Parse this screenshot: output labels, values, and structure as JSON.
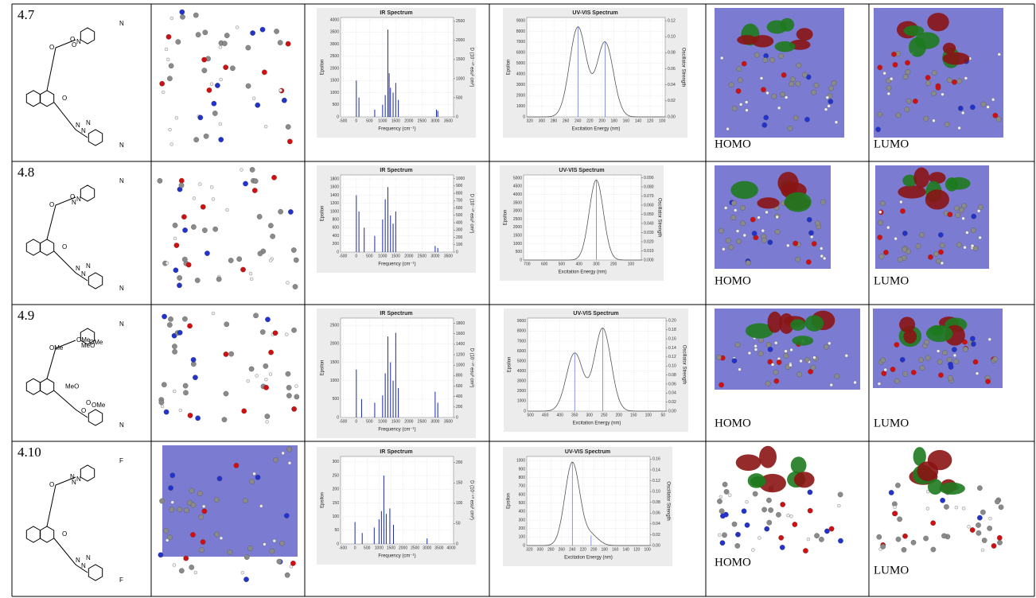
{
  "table": {
    "rows": [
      {
        "id": "4.7",
        "struct_labels": [
          "O",
          "O",
          "O",
          "O",
          "N",
          "N",
          "N",
          "N",
          "N",
          "N"
        ],
        "ir": {
          "title": "IR Spectrum",
          "xlabel": "Frequency (cm⁻¹)",
          "ylabel": "Epsilon",
          "y2label": "D (10⁻⁴⁰ esu² cm²)",
          "xlim": [
            -600,
            3700
          ],
          "ylim": [
            0,
            4100
          ],
          "y2lim": [
            0,
            2600
          ],
          "xticks": [
            -500,
            0,
            500,
            1000,
            1500,
            2000,
            2500,
            3000,
            3500
          ],
          "yticks": [
            0,
            500,
            1000,
            1500,
            2000,
            2500,
            3000,
            3500,
            4000
          ],
          "y2ticks": [
            0,
            500,
            1000,
            1500,
            2000,
            2500
          ],
          "sticks": {
            "x": [
              0,
              100,
              700,
              1000,
              1100,
              1200,
              1250,
              1300,
              1400,
              1500,
              1600,
              3050,
              3100
            ],
            "y": [
              1500,
              800,
              300,
              500,
              900,
              3600,
              1800,
              1200,
              1000,
              1400,
              700,
              300,
              250
            ]
          }
        },
        "uv": {
          "title": "UV-VIS Spectrum",
          "xlabel": "Excitation Energy (nm)",
          "ylabel": "Epsilon",
          "y2label": "Oscillator Strength",
          "xlim": [
            325,
            95
          ],
          "ylim": [
            0,
            9300
          ],
          "y2lim": [
            0,
            0.124
          ],
          "xticks": [
            320,
            300,
            280,
            260,
            240,
            220,
            200,
            180,
            160,
            140,
            120,
            100
          ],
          "yticks": [
            0,
            1000,
            2000,
            3000,
            4000,
            5000,
            6000,
            7000,
            8000,
            9000
          ],
          "y2ticks": [
            {
              "value": 0,
              "label": "0.00"
            },
            {
              "value": 0.02,
              "label": "0.02"
            },
            {
              "value": 0.04,
              "label": "0.04"
            },
            {
              "value": 0.06,
              "label": "0.06"
            },
            {
              "value": 0.08,
              "label": "0.08"
            },
            {
              "value": 0.1,
              "label": "0.10"
            },
            {
              "value": 0.12,
              "label": "0.12"
            }
          ],
          "bands": {
            "x": [
              240,
              195
            ],
            "y": [
              8400,
              7000
            ]
          }
        },
        "homo": "HOMO",
        "lumo": "LUMO"
      },
      {
        "id": "4.8",
        "struct_labels": [
          "O",
          "O",
          "O",
          "N",
          "N",
          "N",
          "N",
          "N",
          "N",
          "N"
        ],
        "ir": {
          "title": "IR Spectrum",
          "xlabel": "Frequency (cm⁻¹)",
          "ylabel": "Epsilon",
          "y2label": "D (10⁻⁴⁰ esu² cm²)",
          "xlim": [
            -600,
            3700
          ],
          "ylim": [
            0,
            1900
          ],
          "y2lim": [
            0,
            1050
          ],
          "xticks": [
            -500,
            0,
            500,
            1000,
            1500,
            2000,
            2500,
            3000,
            3500
          ],
          "yticks": [
            0,
            200,
            400,
            600,
            800,
            1000,
            1200,
            1400,
            1600,
            1800
          ],
          "y2ticks": [
            0,
            100,
            200,
            300,
            400,
            500,
            600,
            700,
            800,
            900,
            1000
          ],
          "sticks": {
            "x": [
              0,
              100,
              300,
              700,
              1000,
              1100,
              1200,
              1300,
              1400,
              1500,
              3000,
              3100
            ],
            "y": [
              1400,
              1000,
              600,
              400,
              800,
              1300,
              1600,
              900,
              700,
              1000,
              150,
              100
            ]
          }
        },
        "uv": {
          "title": "UV-VIS Spectrum",
          "xlabel": "Excitation Energy (nm)",
          "ylabel": "Epsilon",
          "y2label": "Oscillator Strength",
          "xlim": [
            720,
            40
          ],
          "ylim": [
            0,
            5200
          ],
          "y2lim": [
            0,
            0.093
          ],
          "xticks": [
            700,
            600,
            500,
            400,
            300,
            200,
            100
          ],
          "yticks": [
            0,
            500,
            1000,
            1500,
            2000,
            2500,
            3000,
            3500,
            4000,
            4500,
            5000
          ],
          "y2ticks": [
            {
              "value": 0,
              "label": "0.000"
            },
            {
              "value": 0.01,
              "label": "0.010"
            },
            {
              "value": 0.02,
              "label": "0.020"
            },
            {
              "value": 0.03,
              "label": "0.030"
            },
            {
              "value": 0.04,
              "label": "0.040"
            },
            {
              "value": 0.05,
              "label": "0.050"
            },
            {
              "value": 0.06,
              "label": "0.060"
            },
            {
              "value": 0.07,
              "label": "0.070"
            },
            {
              "value": 0.08,
              "label": "0.080"
            },
            {
              "value": 0.09,
              "label": "0.090"
            }
          ],
          "bands": {
            "x": [
              300
            ],
            "y": [
              4900
            ]
          }
        },
        "homo": "HOMO",
        "lumo": "LUMO"
      },
      {
        "id": "4.9",
        "struct_labels": [
          "OMe",
          "MeO",
          "OMe",
          "MeO",
          "OMe",
          "OMe",
          "O",
          "O",
          "N",
          "N"
        ],
        "ir": {
          "title": "IR Spectrum",
          "xlabel": "Frequency (cm⁻¹)",
          "ylabel": "Epsilon",
          "y2label": "D (10⁻⁴⁰ esu² cm²)",
          "xlim": [
            -600,
            3700
          ],
          "ylim": [
            0,
            2700
          ],
          "y2lim": [
            0,
            1900
          ],
          "xticks": [
            -500,
            0,
            500,
            1000,
            1500,
            2000,
            2500,
            3000,
            3500
          ],
          "yticks": [
            0,
            500,
            1000,
            1500,
            2000,
            2500
          ],
          "y2ticks": [
            0,
            200,
            400,
            600,
            800,
            1000,
            1200,
            1400,
            1600,
            1800
          ],
          "sticks": {
            "x": [
              0,
              200,
              700,
              1000,
              1100,
              1200,
              1300,
              1400,
              1500,
              1600,
              3000,
              3100
            ],
            "y": [
              1300,
              500,
              400,
              600,
              1200,
              2200,
              1500,
              1000,
              2300,
              800,
              700,
              400
            ]
          }
        },
        "uv": {
          "title": "UV-VIS Spectrum",
          "xlabel": "Excitation Energy (nm)",
          "ylabel": "Epsilon",
          "y2label": "Oscillator Strength",
          "xlim": [
            510,
            40
          ],
          "ylim": [
            0,
            9300
          ],
          "y2lim": [
            0,
            0.206
          ],
          "xticks": [
            500,
            450,
            400,
            350,
            300,
            250,
            200,
            150,
            100,
            50
          ],
          "yticks": [
            0,
            1000,
            2000,
            3000,
            4000,
            5000,
            6000,
            7000,
            8000,
            9000
          ],
          "y2ticks": [
            {
              "value": 0,
              "label": "0.00"
            },
            {
              "value": 0.02,
              "label": "0.02"
            },
            {
              "value": 0.04,
              "label": "0.04"
            },
            {
              "value": 0.06,
              "label": "0.06"
            },
            {
              "value": 0.08,
              "label": "0.08"
            },
            {
              "value": 0.1,
              "label": "0.10"
            },
            {
              "value": 0.12,
              "label": "0.12"
            },
            {
              "value": 0.14,
              "label": "0.14"
            },
            {
              "value": 0.16,
              "label": "0.16"
            },
            {
              "value": 0.18,
              "label": "0.18"
            },
            {
              "value": 0.2,
              "label": "0.20"
            }
          ],
          "bands": {
            "x": [
              350,
              255
            ],
            "y": [
              5800,
              8300
            ]
          }
        },
        "homo": "HOMO",
        "lumo": "LUMO"
      },
      {
        "id": "4.10",
        "struct_labels": [
          "O",
          "O",
          "N",
          "N",
          "N",
          "N",
          "N",
          "N",
          "F",
          "F"
        ],
        "ir": {
          "title": "IR Spectrum",
          "xlabel": "Frequency (cm⁻¹)",
          "ylabel": "Epsilon",
          "y2label": "D (10⁻⁴⁰ esu² cm²)",
          "xlim": [
            -600,
            4100
          ],
          "ylim": [
            0,
            320
          ],
          "y2lim": [
            0,
            215
          ],
          "xticks": [
            -500,
            0,
            500,
            1000,
            1500,
            2000,
            2500,
            3000,
            3500,
            4000
          ],
          "yticks": [
            0,
            50,
            100,
            150,
            200,
            250,
            300
          ],
          "y2ticks": [
            0,
            50,
            100,
            150,
            200
          ],
          "sticks": {
            "x": [
              0,
              300,
              800,
              1000,
              1100,
              1200,
              1300,
              1450,
              1600,
              3000
            ],
            "y": [
              80,
              40,
              60,
              90,
              120,
              250,
              110,
              130,
              70,
              20
            ]
          }
        },
        "uv": {
          "title": "UV-VIS Spectrum",
          "xlabel": "Excitation Energy (nm)",
          "ylabel": "Epsilon",
          "y2label": "Oscillator Strength",
          "xlim": [
            325,
            95
          ],
          "ylim": [
            0,
            1050
          ],
          "y2lim": [
            0,
            0.165
          ],
          "xticks": [
            320,
            300,
            280,
            260,
            240,
            220,
            200,
            180,
            160,
            140,
            120,
            100
          ],
          "yticks": [
            0,
            100,
            200,
            300,
            400,
            500,
            600,
            700,
            800,
            900,
            1000
          ],
          "y2ticks": [
            {
              "value": 0,
              "label": "0.00"
            },
            {
              "value": 0.02,
              "label": "0.02"
            },
            {
              "value": 0.04,
              "label": "0.04"
            },
            {
              "value": 0.06,
              "label": "0.06"
            },
            {
              "value": 0.08,
              "label": "0.08"
            },
            {
              "value": 0.1,
              "label": "0.10"
            },
            {
              "value": 0.12,
              "label": "0.12"
            },
            {
              "value": 0.14,
              "label": "0.14"
            },
            {
              "value": 0.16,
              "label": "0.16"
            }
          ],
          "bands": {
            "x": [
              240,
              205
            ],
            "y": [
              980,
              120
            ]
          }
        },
        "homo": "HOMO",
        "lumo": "LUMO"
      }
    ]
  }
}
